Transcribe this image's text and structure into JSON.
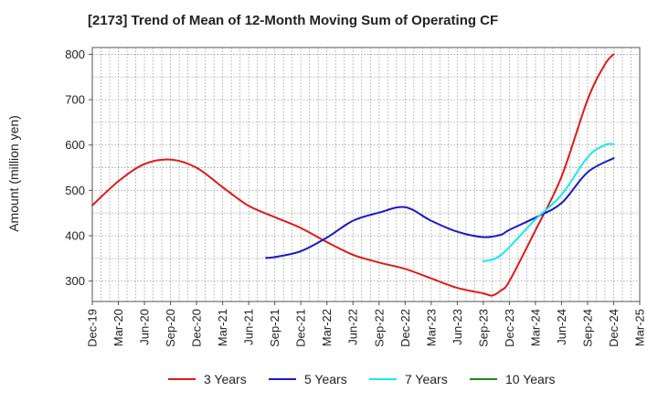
{
  "chart_data": {
    "type": "line",
    "title": "[2173]  Trend of Mean of 12-Month Moving Sum of Operating CF",
    "xlabel": "",
    "ylabel": "Amount (million yen)",
    "ylim": [
      255,
      815
    ],
    "yticks": [
      300,
      400,
      500,
      600,
      700,
      800
    ],
    "grid": true,
    "legend_position": "bottom",
    "categories": [
      "Dec-19",
      "Mar-20",
      "Jun-20",
      "Sep-20",
      "Dec-20",
      "Mar-21",
      "Jun-21",
      "Sep-21",
      "Dec-21",
      "Mar-22",
      "Jun-22",
      "Sep-22",
      "Dec-22",
      "Mar-23",
      "Jun-23",
      "Sep-23",
      "Dec-23",
      "Mar-24",
      "Jun-24",
      "Sep-24",
      "Dec-24",
      "Mar-25"
    ],
    "series": [
      {
        "name": "3 Years",
        "color": "#e0191b",
        "points": [
          [
            0,
            467
          ],
          [
            1,
            520
          ],
          [
            2,
            558
          ],
          [
            3,
            568
          ],
          [
            4,
            550
          ],
          [
            5,
            507
          ],
          [
            6,
            466
          ],
          [
            7,
            441
          ],
          [
            8,
            417
          ],
          [
            9,
            386
          ],
          [
            10,
            358
          ],
          [
            11,
            341
          ],
          [
            12,
            327
          ],
          [
            13,
            306
          ],
          [
            14,
            285
          ],
          [
            15,
            273
          ],
          [
            15.333,
            268
          ],
          [
            15.667,
            279
          ],
          [
            16,
            300
          ],
          [
            17,
            412
          ],
          [
            18,
            530
          ],
          [
            19,
            700
          ],
          [
            19.667,
            778
          ],
          [
            20,
            800
          ]
        ]
      },
      {
        "name": "5 Years",
        "color": "#1a1ac8",
        "points": [
          [
            6.667,
            351
          ],
          [
            7,
            353
          ],
          [
            8,
            366
          ],
          [
            9,
            396
          ],
          [
            10,
            433
          ],
          [
            11,
            451
          ],
          [
            12,
            463
          ],
          [
            13,
            433
          ],
          [
            14,
            409
          ],
          [
            15,
            397
          ],
          [
            15.667,
            402
          ],
          [
            16,
            413
          ],
          [
            17,
            440
          ],
          [
            18,
            472
          ],
          [
            19,
            540
          ],
          [
            20,
            571
          ]
        ]
      },
      {
        "name": "7 Years",
        "color": "#19e8f0",
        "points": [
          [
            15,
            344
          ],
          [
            15.333,
            347
          ],
          [
            15.667,
            357
          ],
          [
            16,
            375
          ],
          [
            17,
            436
          ],
          [
            18,
            490
          ],
          [
            19,
            573
          ],
          [
            19.667,
            600
          ],
          [
            20,
            602
          ]
        ]
      },
      {
        "name": "10 Years",
        "color": "#1b8a1b",
        "points": []
      }
    ]
  }
}
